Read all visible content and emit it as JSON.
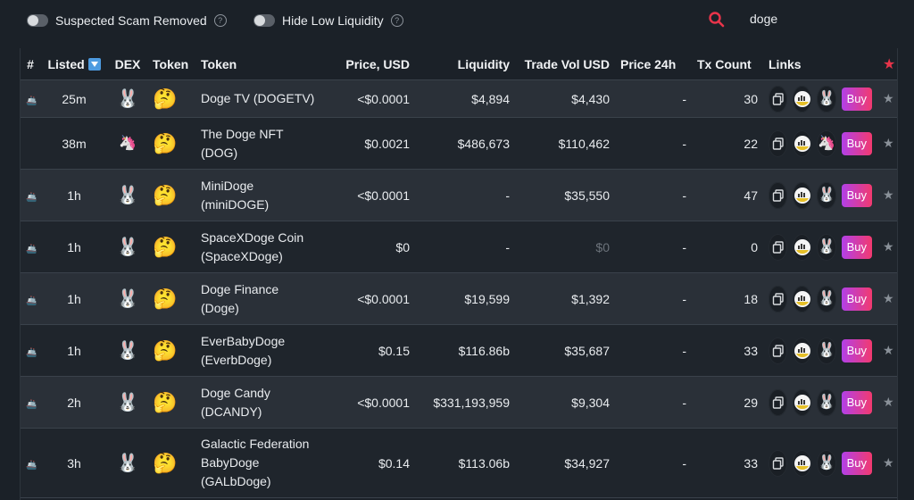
{
  "filters": {
    "scam_label": "Suspected Scam Removed",
    "liquidity_label": "Hide Low Liquidity"
  },
  "search": {
    "value": "doge"
  },
  "colors": {
    "accent_red": "#e8344a",
    "buy_start": "#b240e8",
    "buy_end": "#f23a6f",
    "bg": "#1b2128"
  },
  "columns": {
    "num": "#",
    "listed": "Listed",
    "dex": "DEX",
    "token_icon": "Token",
    "token": "Token",
    "price": "Price, USD",
    "liquidity": "Liquidity",
    "trade_vol": "Trade Vol USD",
    "price24": "Price 24h",
    "tx": "Tx Count",
    "links": "Links"
  },
  "buy_label": "Buy",
  "rows": [
    {
      "marker": "ship-icon",
      "listed": "25m",
      "dex": "pancakeswap-icon",
      "name": "Doge TV (DOGETV)",
      "name2": "",
      "name3": "",
      "price": "<$0.0001",
      "liquidity": "$4,894",
      "volume": "$4,430",
      "price24": "-",
      "tx": "30",
      "chart_icon": "dextools-icon",
      "dex_link": "pancakeswap-icon"
    },
    {
      "marker": "",
      "listed": "38m",
      "dex": "uniswap-icon",
      "name": "The Doge NFT",
      "name2": "(DOG)",
      "name3": "",
      "price": "$0.0021",
      "liquidity": "$486,673",
      "volume": "$110,462",
      "price24": "-",
      "tx": "22",
      "chart_icon": "dextools-icon",
      "dex_link": "uniswap-icon"
    },
    {
      "marker": "ship-icon",
      "listed": "1h",
      "dex": "pancakeswap-icon",
      "name": "MiniDoge",
      "name2": "(miniDOGE)",
      "name3": "",
      "price": "<$0.0001",
      "liquidity": "-",
      "volume": "$35,550",
      "price24": "-",
      "tx": "47",
      "chart_icon": "dextools-icon",
      "dex_link": "pancakeswap-icon"
    },
    {
      "marker": "ship-icon",
      "listed": "1h",
      "dex": "pancakeswap-icon",
      "name": "SpaceXDoge Coin",
      "name2": "(SpaceXDoge)",
      "name3": "",
      "price": "$0",
      "liquidity": "-",
      "volume": "$0",
      "price24": "-",
      "tx": "0",
      "chart_icon": "dextools-icon",
      "dex_link": "pancakeswap-icon"
    },
    {
      "marker": "ship-icon",
      "listed": "1h",
      "dex": "pancakeswap-icon",
      "name": "Doge Finance",
      "name2": "(Doge)",
      "name3": "",
      "price": "<$0.0001",
      "liquidity": "$19,599",
      "volume": "$1,392",
      "price24": "-",
      "tx": "18",
      "chart_icon": "dextools-icon",
      "dex_link": "pancakeswap-icon"
    },
    {
      "marker": "ship-icon",
      "listed": "1h",
      "dex": "pancakeswap-icon",
      "name": "EverBabyDoge",
      "name2": "(EverbDoge)",
      "name3": "",
      "price": "$0.15",
      "liquidity": "$116.86b",
      "volume": "$35,687",
      "price24": "-",
      "tx": "33",
      "chart_icon": "dextools-icon",
      "dex_link": "pancakeswap-icon"
    },
    {
      "marker": "ship-icon",
      "listed": "2h",
      "dex": "pancakeswap-icon",
      "name": "Doge Candy",
      "name2": "(DCANDY)",
      "name3": "",
      "price": "<$0.0001",
      "liquidity": "$331,193,959",
      "volume": "$9,304",
      "price24": "-",
      "tx": "29",
      "chart_icon": "dextools-icon",
      "dex_link": "pancakeswap-icon"
    },
    {
      "marker": "ship-icon",
      "listed": "3h",
      "dex": "pancakeswap-icon",
      "name": "Galactic Federation",
      "name2": "BabyDoge",
      "name3": "(GALbDoge)",
      "price": "$0.14",
      "liquidity": "$113.06b",
      "volume": "$34,927",
      "price24": "-",
      "tx": "33",
      "chart_icon": "dextools-icon",
      "dex_link": "pancakeswap-icon"
    }
  ]
}
